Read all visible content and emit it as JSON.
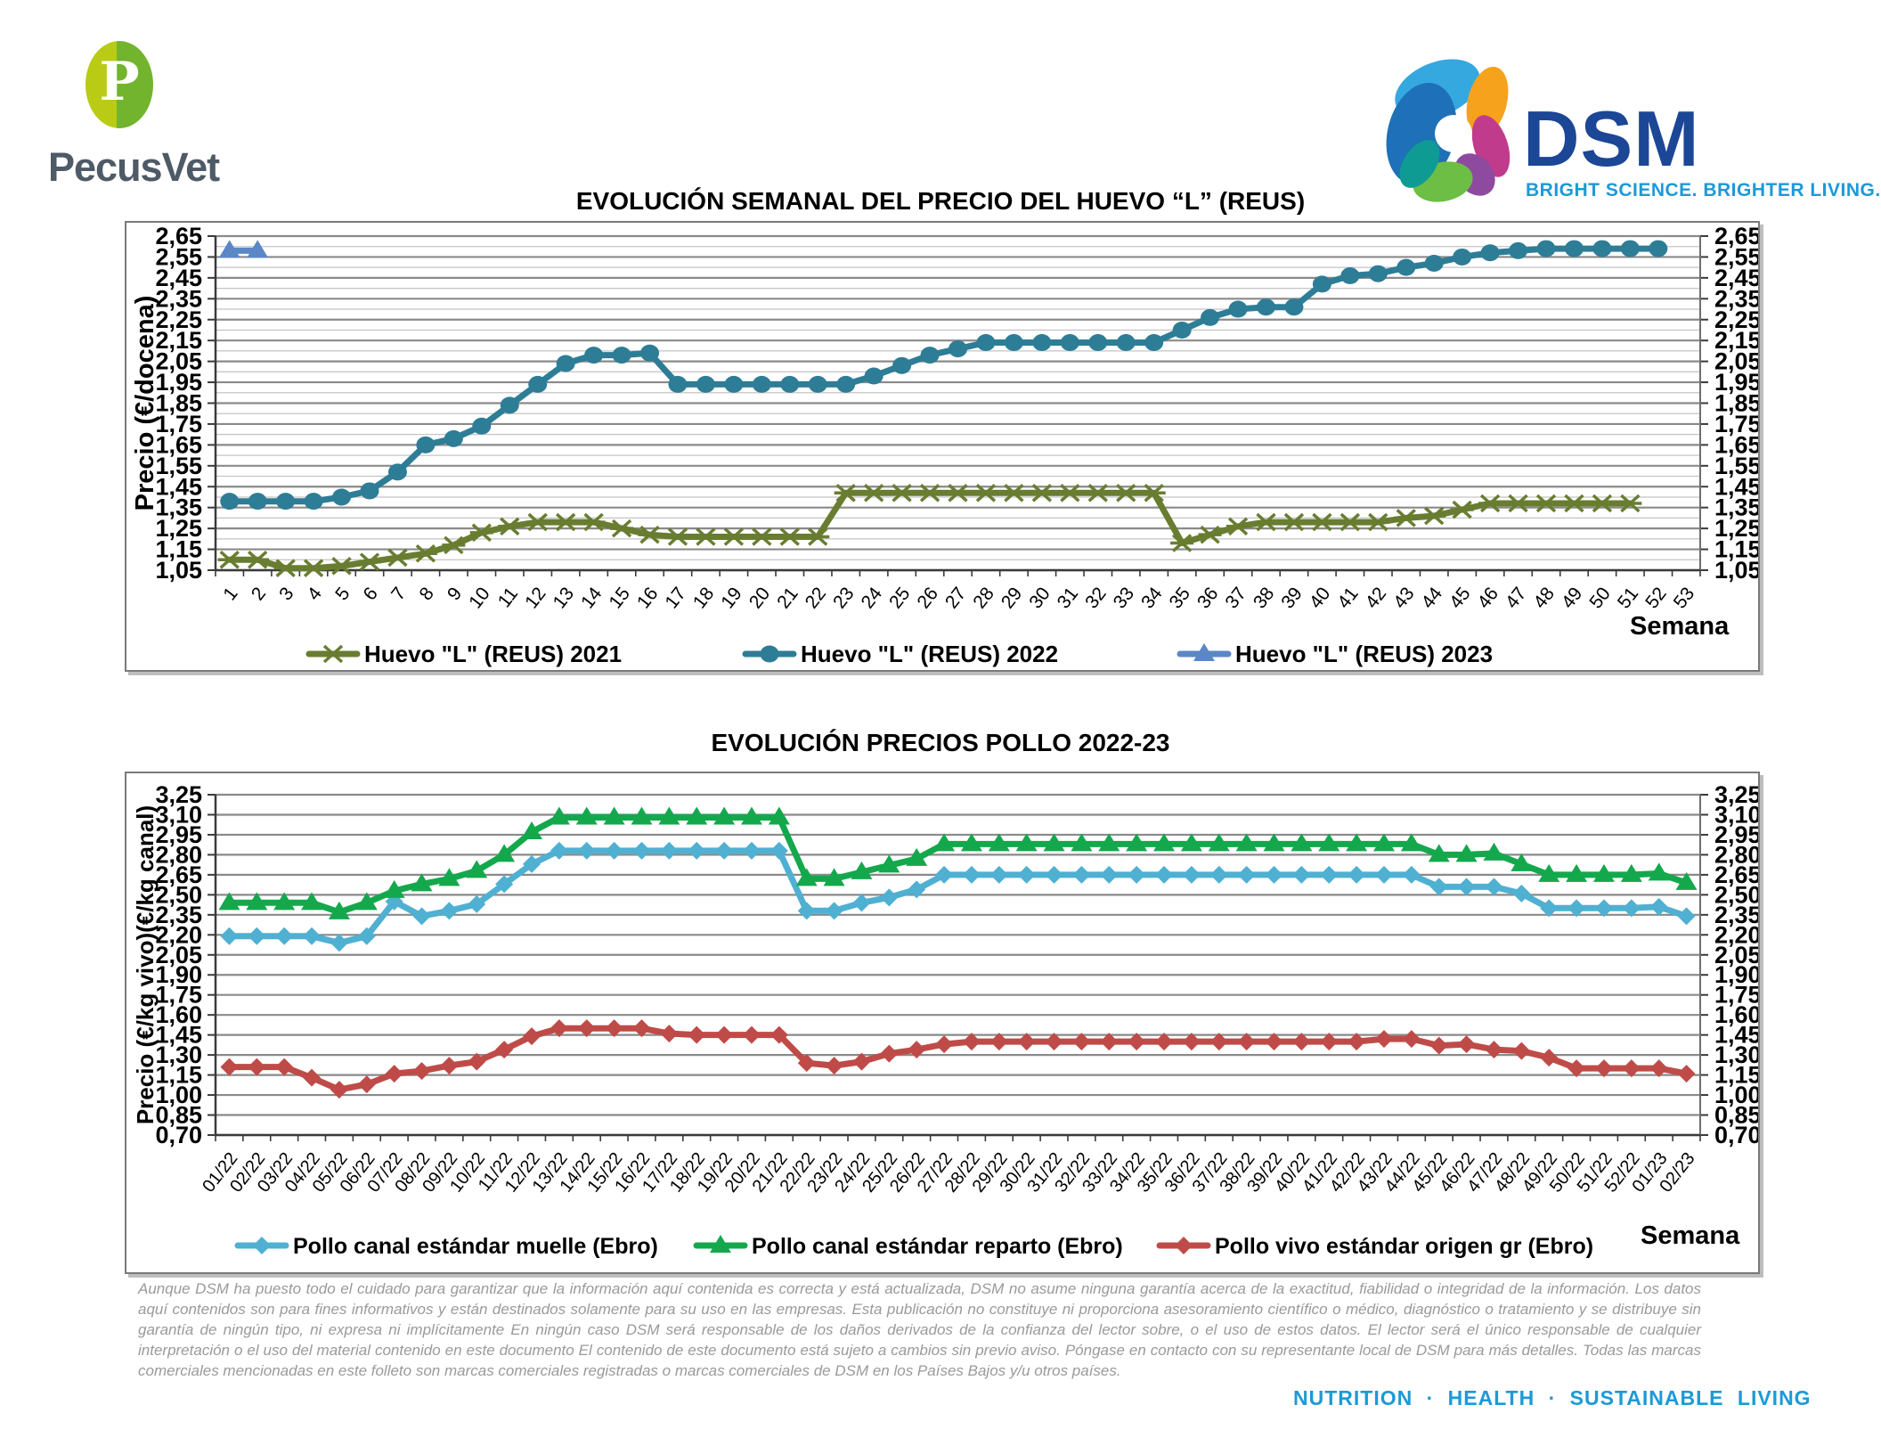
{
  "header": {
    "pecusvet": {
      "monogram": "P",
      "name": "PecusVet"
    },
    "dsm": {
      "name": "DSM",
      "tagline": "BRIGHT SCIENCE. BRIGHTER LIVING."
    }
  },
  "footer": {
    "disclaimer": "Aunque DSM ha puesto todo el cuidado para garantizar que la información aquí contenida es correcta y está actualizada, DSM no asume ninguna garantía acerca de la exactitud, fiabilidad o integridad de la información. Los datos aquí contenidos son para fines informativos y están destinados solamente para su uso en las empresas. Esta publicación no constituye ni proporciona asesoramiento científico o médico, diagnóstico o tratamiento y se distribuye sin garantía de ningún tipo, ni expresa ni implícitamente En ningún caso DSM será responsable de los daños derivados de la confianza del lector sobre, o el uso de estos datos. El lector será el único responsable de cualquier interpretación o el uso del material contenido en este documento El contenido de este documento está sujeto a cambios sin previo aviso. Póngase en contacto con su representante local de DSM para más detalles. Todas las marcas comerciales mencionadas en este folleto son marcas comerciales registradas o marcas comerciales de DSM en los Países Bajos y/u otros países.",
    "tagline": "NUTRITION · HEALTH · SUSTAINABLE LIVING"
  },
  "colors": {
    "pecusvet_green_light": "#b9cb15",
    "pecusvet_green": "#72b42d",
    "pecusvet_text": "#4e5a66",
    "dsm_blue": "#1c4696",
    "dsm_tagline_blue": "#1c9ad6",
    "footer_blue": "#1c9ad6",
    "grid_major": "#8a8a8a",
    "grid_minor": "#c4c4c4"
  },
  "chart_data": [
    {
      "type": "line",
      "title": "EVOLUCIÓN SEMANAL DEL PRECIO DEL HUEVO “L” (REUS)",
      "ylabel": "Precio (€/docena)",
      "xlabel": "Semana",
      "ylim": [
        1.05,
        2.65
      ],
      "ytick_step": 0.1,
      "minor_step": 0.05,
      "grid": true,
      "legend_position": "bottom",
      "categories": [
        "1",
        "2",
        "3",
        "4",
        "5",
        "6",
        "7",
        "8",
        "9",
        "10",
        "11",
        "12",
        "13",
        "14",
        "15",
        "16",
        "17",
        "18",
        "19",
        "20",
        "21",
        "22",
        "23",
        "24",
        "25",
        "26",
        "27",
        "28",
        "29",
        "30",
        "31",
        "32",
        "33",
        "34",
        "35",
        "36",
        "37",
        "38",
        "39",
        "40",
        "41",
        "42",
        "43",
        "44",
        "45",
        "46",
        "47",
        "48",
        "49",
        "50",
        "51",
        "52",
        "53"
      ],
      "series": [
        {
          "name": "Huevo \"L\" (REUS) 2021",
          "color": "#697d31",
          "marker": "star",
          "values": [
            1.1,
            1.1,
            1.06,
            1.06,
            1.07,
            1.09,
            1.11,
            1.13,
            1.17,
            1.23,
            1.26,
            1.28,
            1.28,
            1.28,
            1.25,
            1.22,
            1.21,
            1.21,
            1.21,
            1.21,
            1.21,
            1.21,
            1.42,
            1.42,
            1.42,
            1.42,
            1.42,
            1.42,
            1.42,
            1.42,
            1.42,
            1.42,
            1.42,
            1.42,
            1.18,
            1.22,
            1.26,
            1.28,
            1.28,
            1.28,
            1.28,
            1.28,
            1.3,
            1.31,
            1.34,
            1.37,
            1.37,
            1.37,
            1.37,
            1.37,
            1.37
          ]
        },
        {
          "name": "Huevo \"L\" (REUS) 2022",
          "color": "#2e7d96",
          "marker": "circle",
          "values": [
            1.38,
            1.38,
            1.38,
            1.38,
            1.4,
            1.43,
            1.52,
            1.65,
            1.68,
            1.74,
            1.84,
            1.94,
            2.04,
            2.08,
            2.08,
            2.09,
            1.94,
            1.94,
            1.94,
            1.94,
            1.94,
            1.94,
            1.94,
            1.98,
            2.03,
            2.08,
            2.11,
            2.14,
            2.14,
            2.14,
            2.14,
            2.14,
            2.14,
            2.14,
            2.2,
            2.26,
            2.3,
            2.31,
            2.31,
            2.42,
            2.46,
            2.47,
            2.5,
            2.52,
            2.55,
            2.57,
            2.58,
            2.59,
            2.59,
            2.59,
            2.59,
            2.59
          ]
        },
        {
          "name": "Huevo \"L\" (REUS) 2023",
          "color": "#5b87c6",
          "marker": "triangle",
          "values": [
            2.58,
            2.58
          ]
        }
      ]
    },
    {
      "type": "line",
      "title": "EVOLUCIÓN PRECIOS POLLO 2022-23",
      "ylabel": "Precio (€/kg vivo)(€/kg canal)",
      "xlabel": "Semana",
      "ylim": [
        0.7,
        3.25
      ],
      "ytick_step": 0.15,
      "minor_step": null,
      "grid": true,
      "legend_position": "bottom",
      "categories": [
        "01/22",
        "02/22",
        "03/22",
        "04/22",
        "05/22",
        "06/22",
        "07/22",
        "08/22",
        "09/22",
        "10/22",
        "11/22",
        "12/22",
        "13/22",
        "14/22",
        "15/22",
        "16/22",
        "17/22",
        "18/22",
        "19/22",
        "20/22",
        "21/22",
        "22/22",
        "23/22",
        "24/22",
        "25/22",
        "26/22",
        "27/22",
        "28/22",
        "29/22",
        "30/22",
        "31/22",
        "32/22",
        "33/22",
        "34/22",
        "35/22",
        "36/22",
        "37/22",
        "38/22",
        "39/22",
        "40/22",
        "41/22",
        "42/22",
        "43/22",
        "44/22",
        "45/22",
        "46/22",
        "47/22",
        "48/22",
        "49/22",
        "50/22",
        "51/22",
        "52/22",
        "01/23",
        "02/23"
      ],
      "series": [
        {
          "name": "Pollo canal estándar muelle (Ebro)",
          "color": "#4fb0d2",
          "marker": "diamond",
          "values": [
            2.19,
            2.19,
            2.19,
            2.19,
            2.14,
            2.19,
            2.45,
            2.34,
            2.38,
            2.43,
            2.58,
            2.73,
            2.83,
            2.83,
            2.83,
            2.83,
            2.83,
            2.83,
            2.83,
            2.83,
            2.83,
            2.38,
            2.38,
            2.44,
            2.48,
            2.54,
            2.65,
            2.65,
            2.65,
            2.65,
            2.65,
            2.65,
            2.65,
            2.65,
            2.65,
            2.65,
            2.65,
            2.65,
            2.65,
            2.65,
            2.65,
            2.65,
            2.65,
            2.65,
            2.56,
            2.56,
            2.56,
            2.51,
            2.4,
            2.4,
            2.4,
            2.4,
            2.41,
            2.34
          ]
        },
        {
          "name": "Pollo canal estándar reparto (Ebro)",
          "color": "#14a84d",
          "marker": "triangle",
          "values": [
            2.44,
            2.44,
            2.44,
            2.44,
            2.37,
            2.44,
            2.53,
            2.58,
            2.62,
            2.68,
            2.8,
            2.97,
            3.08,
            3.08,
            3.08,
            3.08,
            3.08,
            3.08,
            3.08,
            3.08,
            3.08,
            2.62,
            2.62,
            2.67,
            2.72,
            2.77,
            2.88,
            2.88,
            2.88,
            2.88,
            2.88,
            2.88,
            2.88,
            2.88,
            2.88,
            2.88,
            2.88,
            2.88,
            2.88,
            2.88,
            2.88,
            2.88,
            2.88,
            2.88,
            2.8,
            2.8,
            2.81,
            2.73,
            2.65,
            2.65,
            2.65,
            2.65,
            2.66,
            2.59
          ]
        },
        {
          "name": "Pollo vivo estándar origen gr (Ebro)",
          "color": "#bf4b48",
          "marker": "diamond",
          "values": [
            1.21,
            1.21,
            1.21,
            1.13,
            1.04,
            1.08,
            1.16,
            1.18,
            1.22,
            1.25,
            1.34,
            1.44,
            1.5,
            1.5,
            1.5,
            1.5,
            1.46,
            1.45,
            1.45,
            1.45,
            1.45,
            1.24,
            1.22,
            1.25,
            1.31,
            1.34,
            1.38,
            1.4,
            1.4,
            1.4,
            1.4,
            1.4,
            1.4,
            1.4,
            1.4,
            1.4,
            1.4,
            1.4,
            1.4,
            1.4,
            1.4,
            1.4,
            1.42,
            1.42,
            1.37,
            1.38,
            1.34,
            1.33,
            1.28,
            1.2,
            1.2,
            1.2,
            1.2,
            1.16
          ]
        }
      ]
    }
  ]
}
